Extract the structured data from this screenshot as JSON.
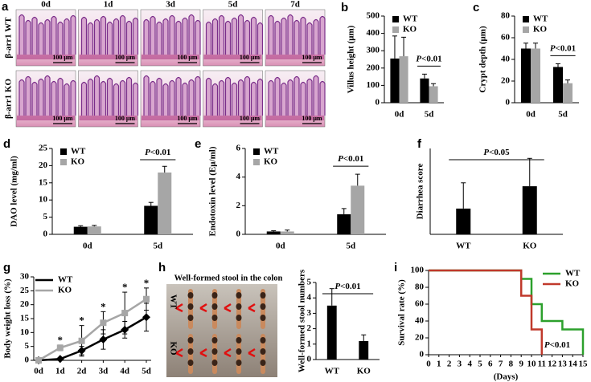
{
  "chart_data": [
    {
      "label": "a",
      "type": "image-grid",
      "columns": [
        "0d",
        "1d",
        "3d",
        "5d",
        "7d"
      ],
      "rows": [
        "β-arr1 WT",
        "β-arr1 KO"
      ],
      "scale_bar": "100 μm"
    },
    {
      "label": "b",
      "type": "bar",
      "ylabel": "Villus height (μm)",
      "categories": [
        "0d",
        "5d"
      ],
      "series": [
        {
          "name": "WT",
          "color": "#000000",
          "values": [
            255,
            140
          ],
          "errors": [
            130,
            25
          ]
        },
        {
          "name": "KO",
          "color": "#a6a6a6",
          "values": [
            268,
            95
          ],
          "errors": [
            110,
            15
          ]
        }
      ],
      "ylim": [
        0,
        500
      ],
      "yticks": [
        0,
        100,
        200,
        300,
        400,
        500
      ],
      "legend": "upper left",
      "annotation": "P<0.01"
    },
    {
      "label": "c",
      "type": "bar",
      "ylabel": "Crypt depth (μm)",
      "categories": [
        "0d",
        "5d"
      ],
      "series": [
        {
          "name": "WT",
          "color": "#000000",
          "values": [
            50,
            33
          ],
          "errors": [
            5,
            3
          ]
        },
        {
          "name": "KO",
          "color": "#a6a6a6",
          "values": [
            50,
            18
          ],
          "errors": [
            5,
            3
          ]
        }
      ],
      "ylim": [
        0,
        80
      ],
      "yticks": [
        0,
        20,
        40,
        60,
        80
      ],
      "legend": "upper left",
      "annotation": "P<0.01"
    },
    {
      "label": "d",
      "type": "bar",
      "ylabel": "DAO level (mg/ml)",
      "categories": [
        "0d",
        "5d"
      ],
      "series": [
        {
          "name": "WT",
          "color": "#000000",
          "values": [
            2.2,
            8.3
          ],
          "errors": [
            0.3,
            1
          ]
        },
        {
          "name": "KO",
          "color": "#a6a6a6",
          "values": [
            2.3,
            18
          ],
          "errors": [
            0.3,
            1.8
          ]
        }
      ],
      "ylim": [
        0,
        25
      ],
      "yticks": [
        0,
        5,
        10,
        15,
        20,
        25
      ],
      "legend": "upper left",
      "annotation": "P<0.01"
    },
    {
      "label": "e",
      "type": "bar",
      "ylabel": "Endotoxin level (Eμ/ml)",
      "categories": [
        "0d",
        "5d"
      ],
      "series": [
        {
          "name": "WT",
          "color": "#000000",
          "values": [
            0.2,
            1.4
          ],
          "errors": [
            0.05,
            0.4
          ]
        },
        {
          "name": "KO",
          "color": "#a6a6a6",
          "values": [
            0.2,
            3.4
          ],
          "errors": [
            0.1,
            0.8
          ]
        }
      ],
      "ylim": [
        0,
        6
      ],
      "yticks": [
        0,
        2,
        4,
        6
      ],
      "legend": "upper left",
      "annotation": "P<0.01"
    },
    {
      "label": "f",
      "type": "bar",
      "ylabel": "Diarrhea score",
      "categories": [
        "WT",
        "KO"
      ],
      "values": [
        0.6,
        1.12
      ],
      "errors": [
        0.6,
        0.65
      ],
      "color": "#000000",
      "ylim": [
        0,
        2
      ],
      "annotation": "P<0.05"
    },
    {
      "label": "g",
      "type": "line",
      "ylabel": "Body weight loss (%)",
      "categories": [
        "0d",
        "1d",
        "2d",
        "3d",
        "4d",
        "5d"
      ],
      "series": [
        {
          "name": "WT",
          "color": "#000000",
          "marker": "diamond",
          "values": [
            0,
            0.5,
            3.5,
            7.5,
            11,
            15.5
          ],
          "errors": [
            0,
            0.3,
            1.5,
            3.5,
            3,
            5
          ]
        },
        {
          "name": "KO",
          "color": "#a6a6a6",
          "marker": "square",
          "values": [
            0,
            4.5,
            7,
            13.5,
            17,
            22
          ],
          "errors": [
            0,
            1,
            5.5,
            4,
            7.5,
            4
          ]
        }
      ],
      "ylim": [
        0,
        30
      ],
      "yticks": [
        0,
        5,
        10,
        15,
        20,
        25,
        30
      ],
      "legend": "upper left",
      "star_labels": [
        "*",
        "*",
        "*",
        "*",
        "*"
      ]
    },
    {
      "label": "h",
      "type": "bar",
      "image_title": "Well-formed stool in the colon",
      "image_rows": [
        "WT",
        "KO"
      ],
      "ylabel": "Well-formed stool numbers",
      "categories": [
        "WT",
        "KO"
      ],
      "values": [
        3.5,
        1.2
      ],
      "errors": [
        1.1,
        0.4
      ],
      "color": "#000000",
      "ylim": [
        0,
        5
      ],
      "yticks": [
        0,
        1,
        2,
        3,
        4,
        5
      ],
      "annotation": "P<0.01"
    },
    {
      "label": "i",
      "type": "step",
      "ylabel": "Survival rate (%)",
      "xlabel": "(Days)",
      "series": [
        {
          "name": "WT",
          "color": "#2ca02c",
          "x": [
            0,
            9,
            10,
            11,
            13,
            15
          ],
          "values": [
            100,
            90,
            60,
            40,
            30,
            0
          ]
        },
        {
          "name": "KO",
          "color": "#c0392b",
          "x": [
            0,
            9,
            10,
            11
          ],
          "values": [
            100,
            70,
            30,
            0
          ]
        }
      ],
      "xlim": [
        0,
        15
      ],
      "xticks": [
        0,
        1,
        2,
        3,
        4,
        5,
        6,
        7,
        8,
        9,
        10,
        11,
        12,
        13,
        14,
        15
      ],
      "ylim": [
        0,
        100
      ],
      "yticks": [
        0,
        20,
        40,
        60,
        80,
        100
      ],
      "legend": "upper right",
      "annotation": "P<0.01"
    }
  ]
}
